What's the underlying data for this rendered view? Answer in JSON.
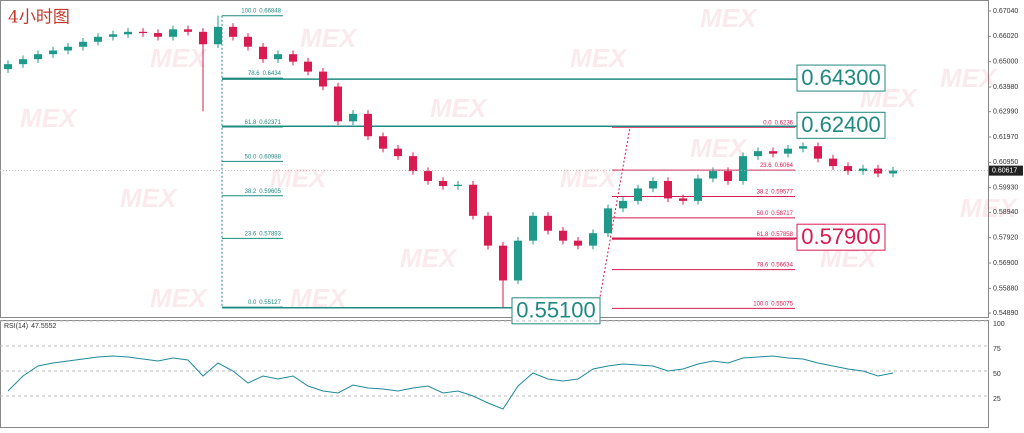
{
  "chart_data": [
    {
      "type": "candlestick",
      "title": "4小时图",
      "watermark": "MEX",
      "up_color": "#1f9a8a",
      "down_color": "#d81b50",
      "open": [
        0.647,
        0.649,
        0.651,
        0.653,
        0.6545,
        0.656,
        0.658,
        0.66,
        0.661,
        0.662,
        0.6615,
        0.66,
        0.663,
        0.662,
        0.657,
        0.664,
        0.66,
        0.656,
        0.651,
        0.653,
        0.65,
        0.646,
        0.64,
        0.626,
        0.629,
        0.62,
        0.615,
        0.612,
        0.606,
        0.602,
        0.6,
        0.6005,
        0.588,
        0.576,
        0.562,
        0.578,
        0.588,
        0.582,
        0.578,
        0.576,
        0.581,
        0.591,
        0.594,
        0.599,
        0.602,
        0.595,
        0.594,
        0.603,
        0.606,
        0.602,
        0.612,
        0.614,
        0.613,
        0.615,
        0.616,
        0.611,
        0.608,
        0.606,
        0.607,
        0.605
      ],
      "high": [
        0.6505,
        0.6525,
        0.6545,
        0.656,
        0.6575,
        0.6595,
        0.6615,
        0.6625,
        0.6635,
        0.6635,
        0.663,
        0.6645,
        0.6645,
        0.6635,
        0.6685,
        0.6655,
        0.6615,
        0.6575,
        0.6545,
        0.6545,
        0.6515,
        0.6475,
        0.6415,
        0.6305,
        0.6305,
        0.6215,
        0.6165,
        0.6135,
        0.6075,
        0.6035,
        0.602,
        0.602,
        0.5895,
        0.5775,
        0.5795,
        0.5895,
        0.5895,
        0.5835,
        0.5795,
        0.5825,
        0.5925,
        0.5955,
        0.6005,
        0.6035,
        0.6035,
        0.5965,
        0.6045,
        0.6075,
        0.6075,
        0.6135,
        0.6155,
        0.6155,
        0.6165,
        0.6175,
        0.6175,
        0.6125,
        0.6095,
        0.6085,
        0.6085,
        0.6077
      ],
      "low": [
        0.6455,
        0.6475,
        0.6495,
        0.6515,
        0.653,
        0.6545,
        0.6565,
        0.6585,
        0.6595,
        0.66,
        0.6585,
        0.6585,
        0.6605,
        0.63,
        0.6555,
        0.6585,
        0.6545,
        0.6495,
        0.6495,
        0.6485,
        0.6445,
        0.6385,
        0.6245,
        0.6245,
        0.6185,
        0.6135,
        0.6105,
        0.6045,
        0.6005,
        0.5985,
        0.5985,
        0.5865,
        0.5745,
        0.5512,
        0.5605,
        0.5765,
        0.5805,
        0.5765,
        0.5745,
        0.5745,
        0.5795,
        0.5895,
        0.5925,
        0.5975,
        0.5935,
        0.5925,
        0.5925,
        0.6015,
        0.6005,
        0.6005,
        0.6105,
        0.6115,
        0.6115,
        0.6135,
        0.6095,
        0.6065,
        0.6045,
        0.6045,
        0.6035,
        0.6035
      ],
      "close": [
        0.649,
        0.651,
        0.653,
        0.6545,
        0.656,
        0.658,
        0.66,
        0.661,
        0.662,
        0.6615,
        0.66,
        0.663,
        0.662,
        0.657,
        0.664,
        0.66,
        0.656,
        0.651,
        0.653,
        0.65,
        0.646,
        0.64,
        0.626,
        0.629,
        0.62,
        0.615,
        0.612,
        0.606,
        0.602,
        0.6,
        0.6005,
        0.588,
        0.576,
        0.562,
        0.578,
        0.588,
        0.582,
        0.578,
        0.576,
        0.581,
        0.591,
        0.594,
        0.599,
        0.602,
        0.595,
        0.594,
        0.603,
        0.606,
        0.602,
        0.612,
        0.614,
        0.613,
        0.615,
        0.616,
        0.611,
        0.608,
        0.606,
        0.607,
        0.605,
        0.6062
      ],
      "ylim": [
        0.5469,
        0.6748
      ],
      "yticks": [
        {
          "value": 0.6704,
          "label": "0.67040"
        },
        {
          "value": 0.6602,
          "label": "0.66020"
        },
        {
          "value": 0.65,
          "label": "0.65000"
        },
        {
          "value": 0.6398,
          "label": "0.63980"
        },
        {
          "value": 0.6299,
          "label": "0.62990"
        },
        {
          "value": 0.6197,
          "label": "0.61970"
        },
        {
          "value": 0.6095,
          "label": "0.60950"
        },
        {
          "value": 0.5993,
          "label": "0.59930"
        },
        {
          "value": 0.5894,
          "label": "0.58940"
        },
        {
          "value": 0.5792,
          "label": "0.57920"
        },
        {
          "value": 0.569,
          "label": "0.56900"
        },
        {
          "value": 0.5588,
          "label": "0.55880"
        },
        {
          "value": 0.5489,
          "label": "0.54890"
        }
      ],
      "last_price": 0.60617,
      "fib_left": {
        "color": "#1f8a80",
        "levels": [
          "100.0",
          "78.6",
          "61.8",
          "50.0",
          "38.2",
          "23.6",
          "0.0"
        ],
        "prices": [
          0.66848,
          0.6434,
          0.62371,
          0.60988,
          0.59605,
          0.57893,
          0.55127
        ]
      },
      "fib_right": {
        "color": "#d81b50",
        "levels": [
          "0.0",
          "23.6",
          "38.2",
          "50.0",
          "61.8",
          "78.6",
          "100.0"
        ],
        "prices": [
          0.6236,
          0.6064,
          0.59577,
          0.58717,
          0.57858,
          0.56634,
          0.55075
        ]
      },
      "annotations": [
        {
          "value": 0.643,
          "label": "0.64300",
          "color": "#1f8a80"
        },
        {
          "value": 0.624,
          "label": "0.62400",
          "color": "#1f8a80"
        },
        {
          "value": 0.579,
          "label": "0.57900",
          "color": "#d81b50"
        },
        {
          "value": 0.551,
          "label": "0.55100",
          "color": "#1f8a80"
        }
      ]
    },
    {
      "type": "line",
      "name": "RSI(14)",
      "current": 47.5552,
      "color": "#1f8a9a",
      "values": [
        30,
        45,
        55,
        58,
        60,
        62,
        64,
        65,
        64,
        62,
        60,
        63,
        61,
        45,
        58,
        50,
        38,
        45,
        42,
        45,
        35,
        30,
        28,
        36,
        33,
        32,
        30,
        33,
        35,
        28,
        30,
        25,
        18,
        12,
        35,
        48,
        42,
        40,
        42,
        52,
        55,
        57,
        56,
        55,
        50,
        52,
        57,
        60,
        58,
        63,
        64,
        65,
        63,
        62,
        58,
        55,
        52,
        50,
        45,
        48
      ],
      "ylim": [
        0,
        100
      ],
      "yticks": [
        25,
        50,
        75,
        100
      ]
    }
  ]
}
